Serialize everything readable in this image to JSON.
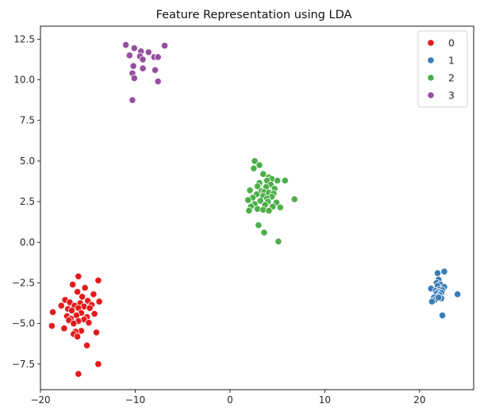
{
  "chart_data": {
    "type": "scatter",
    "title": "Feature Representation using LDA",
    "xlabel": "",
    "ylabel": "",
    "xlim": [
      -20.0,
      25.7
    ],
    "ylim": [
      -9.07,
      13.3
    ],
    "x_ticks": [
      -20,
      -10,
      0,
      10,
      20
    ],
    "y_ticks": [
      -7.5,
      -5.0,
      -2.5,
      0.0,
      2.5,
      5.0,
      7.5,
      10.0,
      12.5
    ],
    "y_tick_labels": [
      "−7.5",
      "−5.0",
      "−2.5",
      "0.0",
      "2.5",
      "5.0",
      "7.5",
      "10.0",
      "12.5"
    ],
    "x_tick_labels": [
      "−20",
      "−10",
      "0",
      "10",
      "20"
    ],
    "grid": false,
    "legend_position": "top-right",
    "series": [
      {
        "name": "0",
        "color": "#e41a1c",
        "points": [
          [
            -16.0,
            -2.1
          ],
          [
            -16.6,
            -2.6
          ],
          [
            -13.9,
            -2.35
          ],
          [
            -15.3,
            -2.8
          ],
          [
            -16.1,
            -3.05
          ],
          [
            -14.4,
            -3.2
          ],
          [
            -15.6,
            -3.35
          ],
          [
            -17.4,
            -3.55
          ],
          [
            -15.0,
            -3.6
          ],
          [
            -13.8,
            -3.65
          ],
          [
            -16.9,
            -3.7
          ],
          [
            -15.8,
            -3.75
          ],
          [
            -14.6,
            -3.85
          ],
          [
            -17.8,
            -3.9
          ],
          [
            -16.4,
            -3.9
          ],
          [
            -15.4,
            -3.95
          ],
          [
            -16.0,
            -4.05
          ],
          [
            -14.8,
            -4.05
          ],
          [
            -17.1,
            -4.1
          ],
          [
            -16.7,
            -4.2
          ],
          [
            -18.7,
            -4.3
          ],
          [
            -15.7,
            -4.35
          ],
          [
            -14.3,
            -4.4
          ],
          [
            -16.2,
            -4.5
          ],
          [
            -17.2,
            -4.55
          ],
          [
            -15.1,
            -4.6
          ],
          [
            -16.8,
            -4.7
          ],
          [
            -15.4,
            -4.75
          ],
          [
            -17.0,
            -4.8
          ],
          [
            -16.0,
            -4.85
          ],
          [
            -14.9,
            -4.95
          ],
          [
            -16.5,
            -5.0
          ],
          [
            -18.8,
            -5.15
          ],
          [
            -17.5,
            -5.3
          ],
          [
            -15.7,
            -5.45
          ],
          [
            -16.3,
            -5.5
          ],
          [
            -14.1,
            -5.55
          ],
          [
            -16.5,
            -5.65
          ],
          [
            -16.1,
            -5.8
          ],
          [
            -15.1,
            -6.35
          ],
          [
            -13.9,
            -7.5
          ],
          [
            -16.0,
            -8.1
          ]
        ]
      },
      {
        "name": "1",
        "color": "#377eb8",
        "points": [
          [
            22.6,
            -1.8
          ],
          [
            21.9,
            -1.9
          ],
          [
            22.0,
            -2.3
          ],
          [
            21.8,
            -2.5
          ],
          [
            22.2,
            -2.6
          ],
          [
            21.9,
            -2.7
          ],
          [
            22.6,
            -2.75
          ],
          [
            21.2,
            -2.85
          ],
          [
            22.1,
            -2.9
          ],
          [
            22.4,
            -2.95
          ],
          [
            21.7,
            -3.0
          ],
          [
            22.0,
            -3.05
          ],
          [
            22.3,
            -3.1
          ],
          [
            21.8,
            -3.15
          ],
          [
            24.0,
            -3.2
          ],
          [
            22.1,
            -3.25
          ],
          [
            21.9,
            -3.35
          ],
          [
            21.5,
            -3.4
          ],
          [
            22.3,
            -3.45
          ],
          [
            21.6,
            -3.55
          ],
          [
            21.3,
            -3.65
          ],
          [
            22.0,
            -3.4
          ],
          [
            22.4,
            -4.5
          ]
        ]
      },
      {
        "name": "2",
        "color": "#4daf4a",
        "points": [
          [
            2.6,
            5.0
          ],
          [
            3.1,
            4.75
          ],
          [
            2.5,
            4.55
          ],
          [
            3.5,
            4.2
          ],
          [
            4.1,
            4.0
          ],
          [
            4.4,
            3.9
          ],
          [
            3.9,
            3.8
          ],
          [
            5.0,
            3.8
          ],
          [
            5.8,
            3.8
          ],
          [
            3.1,
            3.65
          ],
          [
            4.3,
            3.55
          ],
          [
            2.9,
            3.45
          ],
          [
            3.8,
            3.4
          ],
          [
            4.7,
            3.3
          ],
          [
            2.1,
            3.2
          ],
          [
            3.3,
            3.15
          ],
          [
            3.6,
            3.1
          ],
          [
            4.1,
            3.05
          ],
          [
            4.6,
            3.0
          ],
          [
            2.8,
            2.95
          ],
          [
            3.5,
            2.85
          ],
          [
            4.4,
            2.8
          ],
          [
            2.4,
            2.75
          ],
          [
            3.9,
            2.7
          ],
          [
            6.8,
            2.65
          ],
          [
            1.9,
            2.6
          ],
          [
            3.2,
            2.55
          ],
          [
            4.0,
            2.5
          ],
          [
            4.9,
            2.45
          ],
          [
            2.6,
            2.35
          ],
          [
            3.7,
            2.3
          ],
          [
            2.2,
            2.2
          ],
          [
            4.5,
            2.2
          ],
          [
            5.3,
            2.15
          ],
          [
            2.9,
            2.05
          ],
          [
            3.5,
            2.0
          ],
          [
            2.0,
            1.95
          ],
          [
            4.1,
            1.95
          ],
          [
            3.0,
            1.05
          ],
          [
            3.6,
            0.6
          ],
          [
            5.1,
            0.05
          ]
        ]
      },
      {
        "name": "3",
        "color": "#984ea3",
        "points": [
          [
            -11.0,
            12.15
          ],
          [
            -6.9,
            12.1
          ],
          [
            -10.1,
            11.95
          ],
          [
            -9.4,
            11.75
          ],
          [
            -8.6,
            11.7
          ],
          [
            -10.6,
            11.5
          ],
          [
            -9.5,
            11.45
          ],
          [
            -8.0,
            11.4
          ],
          [
            -7.6,
            11.4
          ],
          [
            -9.2,
            11.25
          ],
          [
            -10.2,
            10.85
          ],
          [
            -9.2,
            10.7
          ],
          [
            -7.9,
            10.6
          ],
          [
            -10.3,
            10.4
          ],
          [
            -10.1,
            10.1
          ],
          [
            -7.6,
            9.9
          ],
          [
            -10.3,
            8.75
          ]
        ]
      }
    ]
  }
}
